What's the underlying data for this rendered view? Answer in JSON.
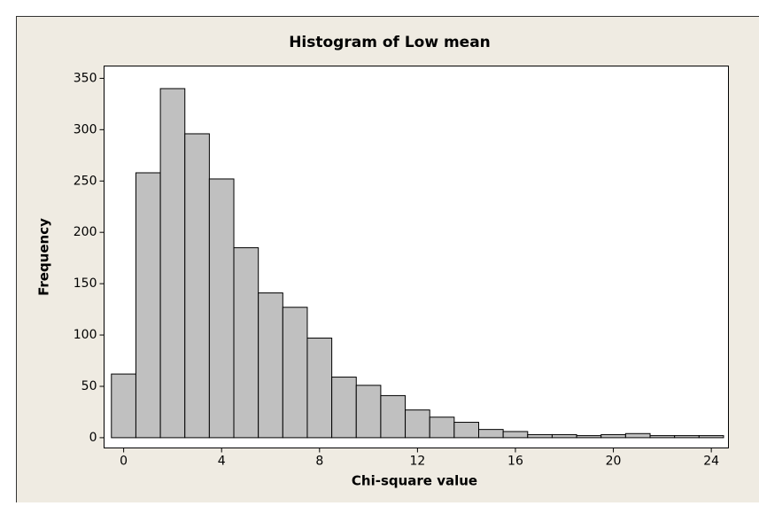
{
  "chart_data": {
    "type": "histogram",
    "title": "Histogram of Low mean",
    "x_label": "Chi-square value",
    "y_label": "Frequency",
    "bins": [
      -0.5,
      0.5,
      1.5,
      2.5,
      3.5,
      4.5,
      5.5,
      6.5,
      7.5,
      8.5,
      9.5,
      10.5,
      11.5,
      12.5,
      13.5,
      14.5,
      15.5,
      16.5,
      17.5,
      18.5,
      19.5,
      20.5,
      21.5,
      22.5,
      23.5,
      24.5
    ],
    "values": [
      62,
      258,
      340,
      296,
      252,
      185,
      141,
      127,
      97,
      59,
      51,
      41,
      27,
      20,
      15,
      8,
      6,
      3,
      3,
      2,
      3,
      4,
      2,
      2,
      2
    ],
    "color": "#c0c0c0",
    "xlim": [
      -0.8,
      24.7
    ],
    "xticks": [
      0,
      4,
      8,
      12,
      16,
      20,
      24
    ],
    "ylim": [
      -10,
      362
    ],
    "yticks": [
      0,
      50,
      100,
      150,
      200,
      250,
      300,
      350
    ],
    "grid": false
  }
}
